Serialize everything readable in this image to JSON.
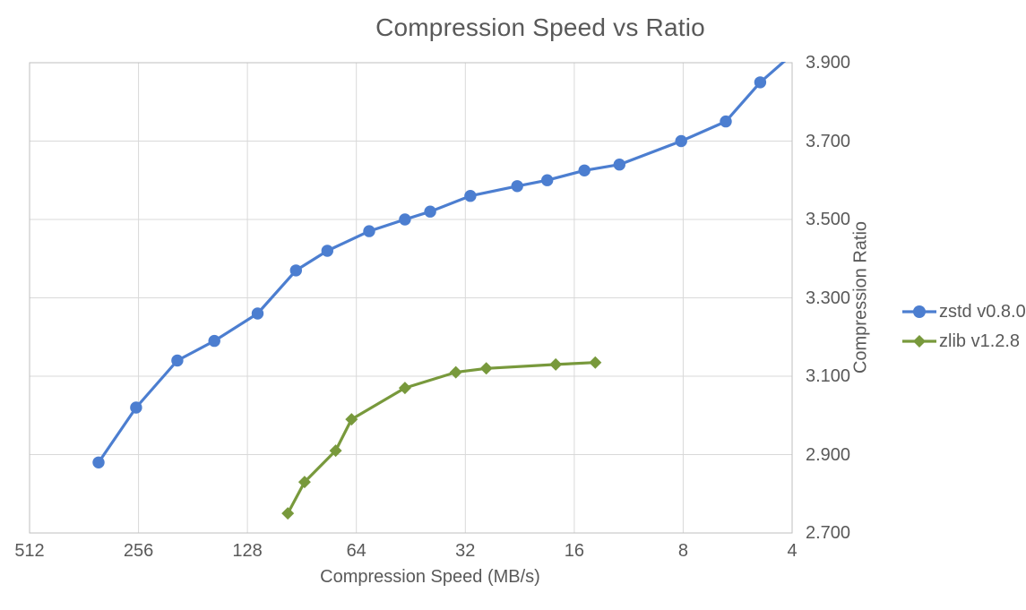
{
  "chart_data": {
    "type": "line",
    "title": "Compression Speed vs Ratio",
    "xlabel": "Compression Speed (MB/s)",
    "ylabel": "Compression Ratio",
    "x_scale": "log2_reversed",
    "xlim": [
      512,
      4
    ],
    "ylim": [
      2.7,
      3.9
    ],
    "x_ticks": [
      512,
      256,
      128,
      64,
      32,
      16,
      8,
      4
    ],
    "y_tick_labels": [
      "2.700",
      "2.900",
      "3.100",
      "3.300",
      "3.500",
      "3.700",
      "3.900"
    ],
    "grid": true,
    "legend_position": "right",
    "colors": {
      "gridline": "#d9d9d9",
      "plot_border": "#bfbfbf",
      "text": "#595959"
    },
    "series": [
      {
        "name": "zstd v0.8.0",
        "color": "#4C7ED0",
        "marker": "circle",
        "points": [
          [
            330,
            2.88
          ],
          [
            260,
            3.02
          ],
          [
            200,
            3.14
          ],
          [
            158,
            3.19
          ],
          [
            120,
            3.26
          ],
          [
            94,
            3.37
          ],
          [
            77,
            3.42
          ],
          [
            59,
            3.47
          ],
          [
            47,
            3.5
          ],
          [
            40,
            3.52
          ],
          [
            31,
            3.56
          ],
          [
            23,
            3.585
          ],
          [
            19,
            3.6
          ],
          [
            15,
            3.625
          ],
          [
            12,
            3.64
          ],
          [
            8.1,
            3.7
          ],
          [
            6.1,
            3.75
          ],
          [
            4.9,
            3.85
          ],
          [
            3.9,
            3.93
          ]
        ]
      },
      {
        "name": "zlib v1.2.8",
        "color": "#78993C",
        "marker": "diamond",
        "points": [
          [
            99,
            2.75
          ],
          [
            89,
            2.83
          ],
          [
            73,
            2.91
          ],
          [
            66,
            2.99
          ],
          [
            47,
            3.07
          ],
          [
            34,
            3.11
          ],
          [
            28,
            3.12
          ],
          [
            18,
            3.13
          ],
          [
            14,
            3.135
          ]
        ]
      }
    ]
  }
}
